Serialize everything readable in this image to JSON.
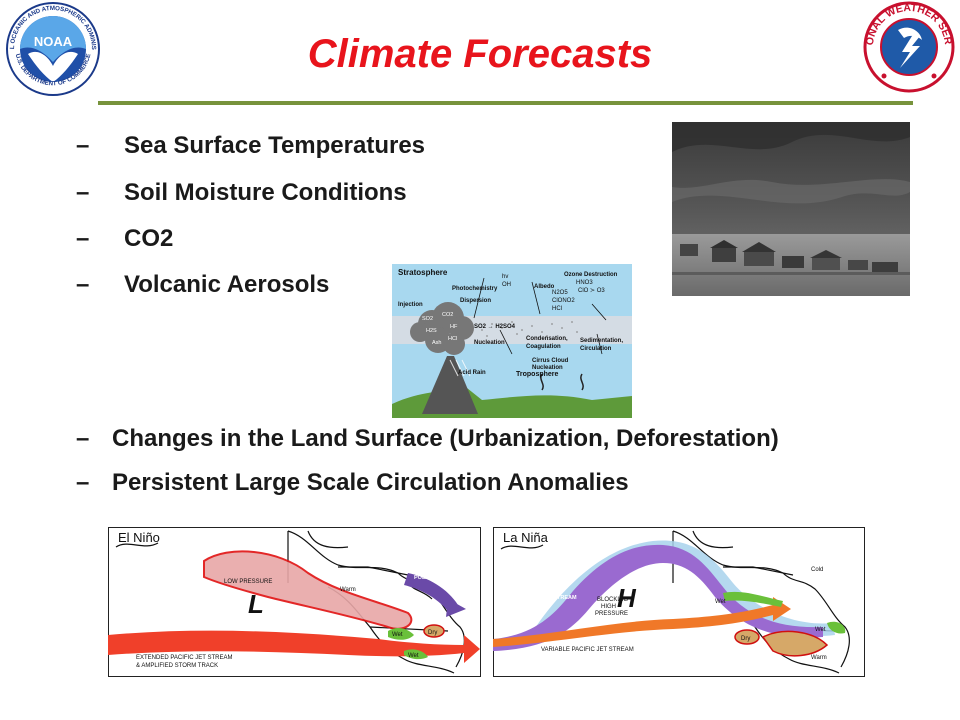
{
  "slide": {
    "title": "Climate Forecasts",
    "bullets_top": [
      {
        "dash": "–",
        "text": "Sea Surface Temperatures"
      },
      {
        "dash": "–",
        "text": "Soil Moisture Conditions"
      },
      {
        "dash": "–",
        "text": "CO2"
      },
      {
        "dash": "–",
        "text": "Volcanic Aerosols"
      }
    ],
    "bullets_bottom": [
      {
        "dash": "–",
        "text": "Changes in the Land Surface (Urbanization, Deforestation)"
      },
      {
        "dash": "–",
        "text": "Persistent Large Scale Circulation Anomalies"
      }
    ]
  },
  "logos": {
    "noaa": {
      "center": "NOAA",
      "ring_top": "NATIONAL OCEANIC AND ATMOSPHERIC ADMINISTRATION",
      "ring_bottom": "U.S. DEPARTMENT OF COMMERCE"
    },
    "nws": {
      "ring": "NATIONAL WEATHER SERVICE"
    }
  },
  "aerosol_diagram": {
    "stratosphere": "Stratosphere",
    "troposphere": "Troposphere",
    "injection": "Injection",
    "photochemistry": "Photochemistry",
    "dispersion": "Dispersion",
    "hv": "hv",
    "oh": "OH",
    "albedo": "Albedo",
    "ozone_destruction": "Ozone Destruction",
    "hno3": "HNO3",
    "clo_o3": "ClO ≻ O3",
    "n2o5": "N2O5",
    "clono2": "ClONO2",
    "hcl": "HCl",
    "so2": "SO2",
    "co2": "CO2",
    "h2s": "H2S",
    "ash": "Ash",
    "hf": "HF",
    "hcl_plume": "HCl",
    "so2_h2so4": "SO2 → H2SO4",
    "nucleation": "Nucleation",
    "condensation": "Condensation,",
    "coagulation": "Coagulation",
    "sedimentation": "Sedimentation,",
    "circulation": "Circulation",
    "cirrus": "Cirrus Cloud",
    "cirrus2": "Nucleation",
    "acid_rain": "Acid Rain"
  },
  "maps": {
    "el_nino": {
      "title": "El Niño",
      "low_pressure": "LOW PRESSURE",
      "L": "L",
      "warm": "Warm",
      "polar_jet": "POLAR JET STREAM",
      "dry": "Dry",
      "wet": "Wet",
      "wet2": "Wet",
      "extended_jet_1": "EXTENDED PACIFIC JET STREAM",
      "extended_jet_2": "& AMPLIFIED STORM TRACK"
    },
    "la_nina": {
      "title": "La Niña",
      "polar_jet": "POLAR JET STREAM",
      "H": "H",
      "blocking_1": "BLOCKING",
      "blocking_2": "HIGH",
      "blocking_3": "PRESSURE",
      "cold": "Cold",
      "wet": "Wet",
      "dry": "Dry",
      "wet2": "Wet",
      "warm": "Warm",
      "variable_jet": "VARIABLE PACIFIC JET STREAM"
    }
  },
  "colors": {
    "title": "#e8141c",
    "rule": "#77933c",
    "text": "#1a1a1a"
  }
}
